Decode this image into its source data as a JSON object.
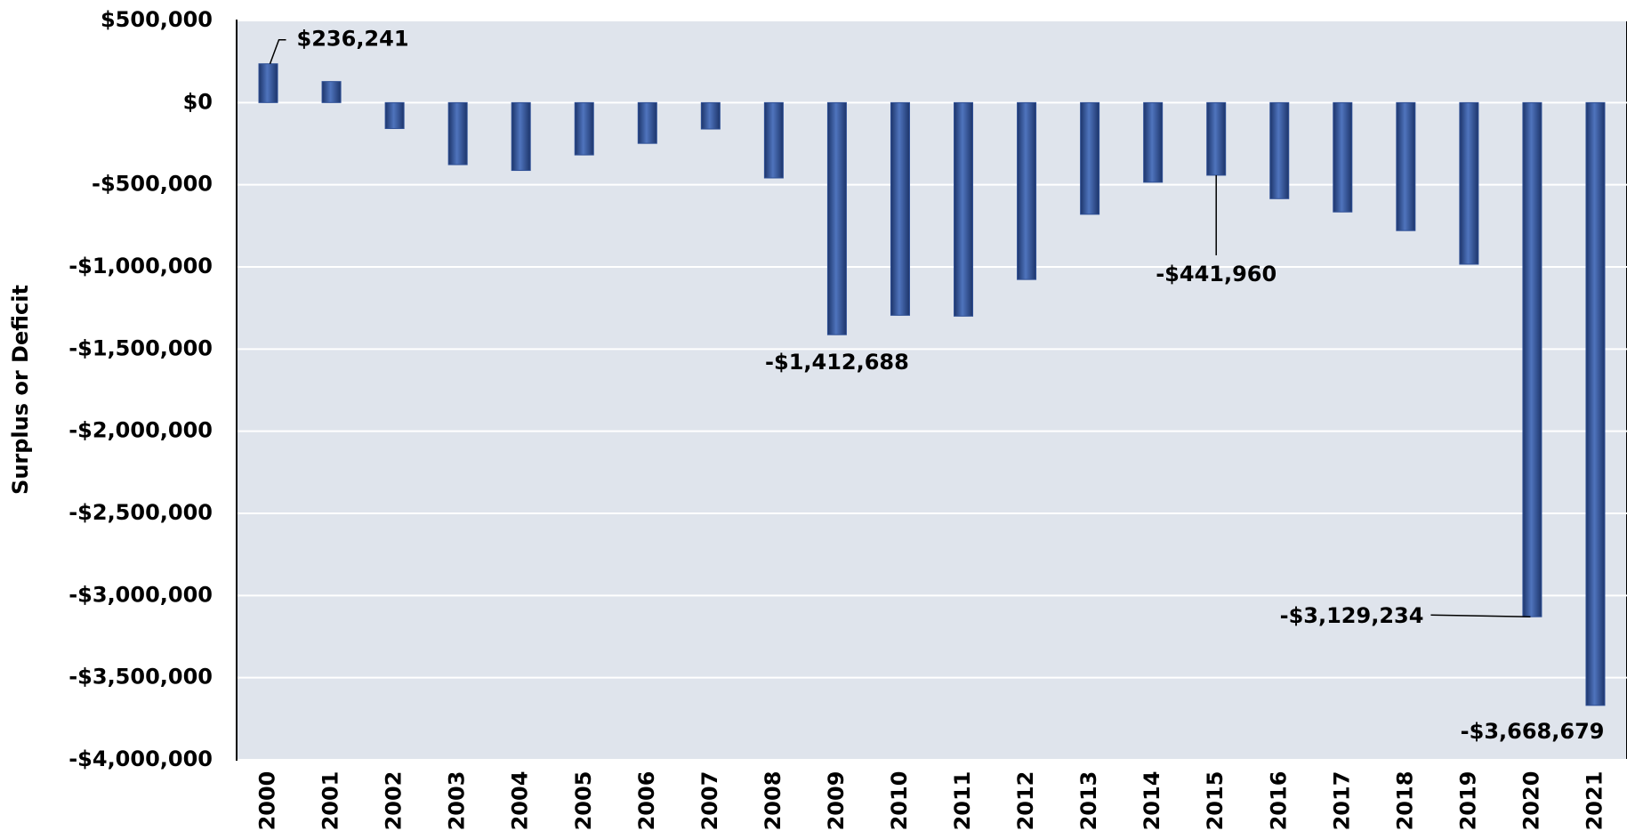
{
  "chart_data": {
    "type": "bar",
    "y_axis_label": "Surplus or Deficit",
    "categories": [
      "2000",
      "2001",
      "2002",
      "2003",
      "2004",
      "2005",
      "2006",
      "2007",
      "2008",
      "2009",
      "2010",
      "2011",
      "2012",
      "2013",
      "2014",
      "2015",
      "2016",
      "2017",
      "2018",
      "2019",
      "2020",
      "2021"
    ],
    "values": [
      236241,
      128236,
      -157758,
      -377585,
      -412727,
      -318346,
      -248181,
      -160701,
      -458553,
      -1412688,
      -1294373,
      -1299599,
      -1076573,
      -679775,
      -484602,
      -441960,
      -584651,
      -665446,
      -779137,
      -983594,
      -3129234,
      -3668679
    ],
    "value_labels": [
      "$236,241",
      null,
      null,
      null,
      null,
      null,
      null,
      null,
      null,
      "-$1,412,688",
      null,
      null,
      null,
      null,
      null,
      "-$441,960",
      null,
      null,
      null,
      null,
      "-$3,129,234",
      "-$3,668,679"
    ],
    "color": "#2e4f95",
    "ylim": [
      -4000000,
      500000
    ],
    "yticks": [
      {
        "value": 500000,
        "label": "$500,000"
      },
      {
        "value": 0,
        "label": "$0"
      },
      {
        "value": -500000,
        "label": "-$500,000"
      },
      {
        "value": -1000000,
        "label": "-$1,000,000"
      },
      {
        "value": -1500000,
        "label": "-$1,500,000"
      },
      {
        "value": -2000000,
        "label": "-$2,000,000"
      },
      {
        "value": -2500000,
        "label": "-$2,500,000"
      },
      {
        "value": -3000000,
        "label": "-$3,000,000"
      },
      {
        "value": -3500000,
        "label": "-$3,500,000"
      },
      {
        "value": -4000000,
        "label": "-$4,000,000"
      }
    ],
    "grid": true
  }
}
